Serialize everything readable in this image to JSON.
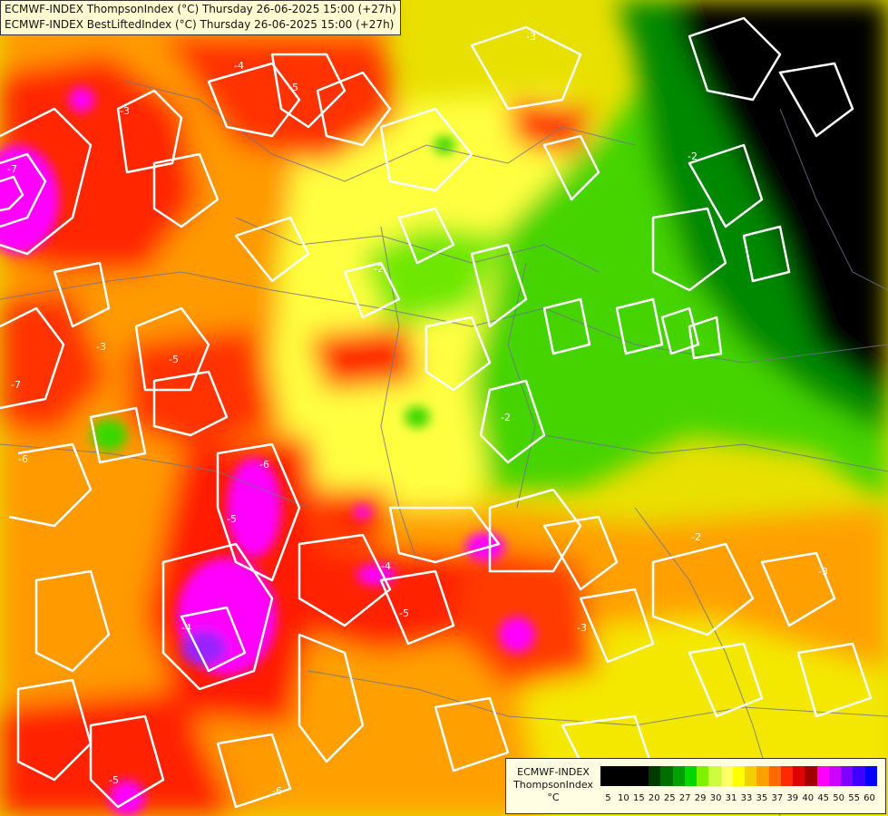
{
  "header": {
    "line1": "ECMWF-INDEX ThompsonIndex (°C) Thursday 26-06-2025 15:00 (+27h)",
    "line2": "ECMWF-INDEX BestLiftedIndex (°C) Thursday 26-06-2025 15:00 (+27h)"
  },
  "legend": {
    "model": "ECMWF-INDEX",
    "parameter": "ThompsonIndex",
    "unit": "°C",
    "ticks": [
      "5",
      "10",
      "15",
      "20",
      "25",
      "27",
      "29",
      "30",
      "31",
      "33",
      "35",
      "37",
      "39",
      "40",
      "45",
      "50",
      "55",
      "60"
    ],
    "colors": [
      "#000000",
      "#000000",
      "#000000",
      "#000000",
      "#003a00",
      "#006e00",
      "#00a000",
      "#00d800",
      "#7ef200",
      "#ccff40",
      "#ffff66",
      "#ffff00",
      "#f0d000",
      "#ffa000",
      "#ff6a00",
      "#ff2800",
      "#e00000",
      "#a00000",
      "#ff00ff",
      "#d000ff",
      "#8000ff",
      "#4000ff",
      "#0000ff"
    ]
  },
  "contour_labels": [
    "-2",
    "-3",
    "-4",
    "-5",
    "-6",
    "-7"
  ]
}
